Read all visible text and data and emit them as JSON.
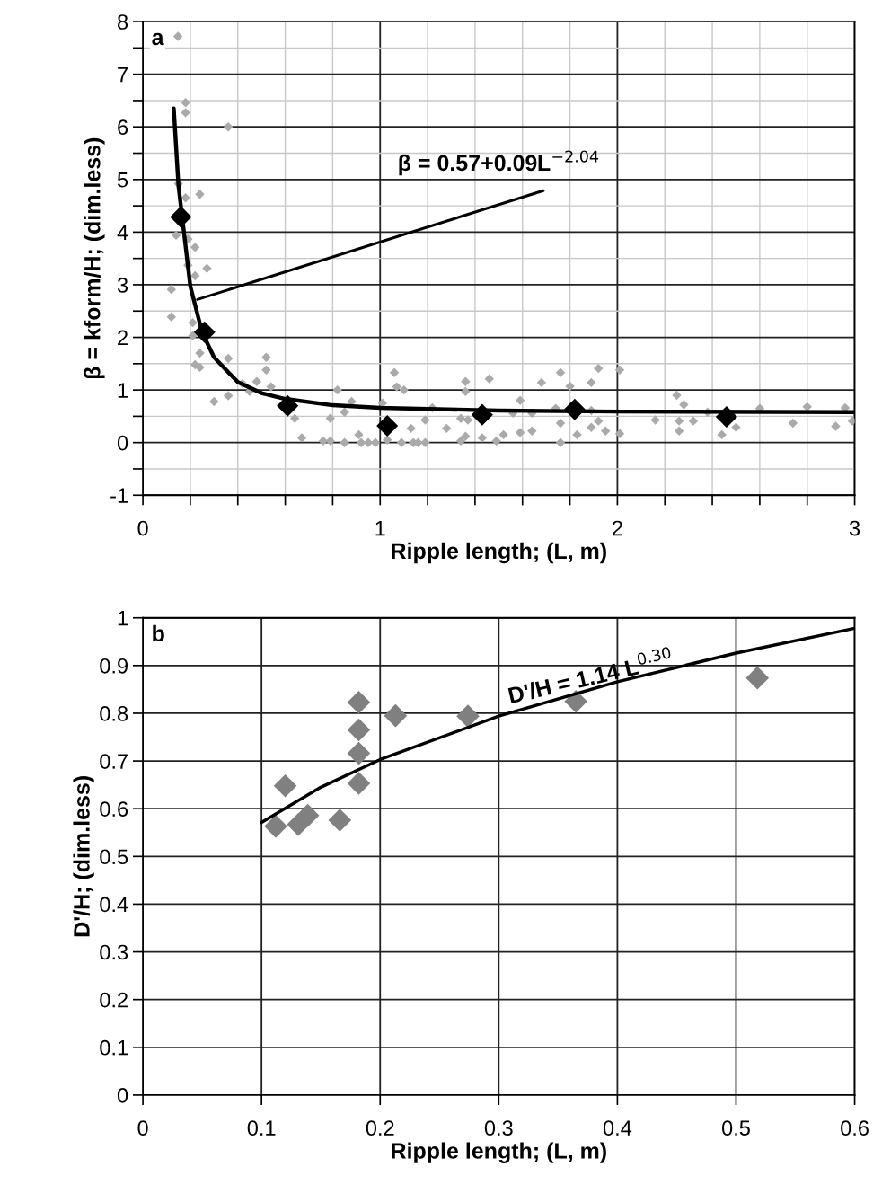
{
  "chart_data": [
    {
      "type": "scatter",
      "xlabel": "Ripple length; (L, m)",
      "ylabel": "β = kform/H; (dim.less)",
      "xlim": [
        0,
        3
      ],
      "ylim": [
        -1,
        8
      ],
      "grid": true,
      "xticks": [
        0,
        {
          "value": 0.2,
          "label": null
        },
        {
          "value": 0.4,
          "label": null
        },
        {
          "value": 0.6,
          "label": null
        },
        {
          "value": 0.8,
          "label": null
        },
        1,
        {
          "value": 1.2,
          "label": null
        },
        {
          "value": 1.4,
          "label": null
        },
        {
          "value": 1.6,
          "label": null
        },
        {
          "value": 1.8,
          "label": null
        },
        2,
        {
          "value": 2.2,
          "label": null
        },
        {
          "value": 2.4,
          "label": null
        },
        {
          "value": 2.6,
          "label": null
        },
        {
          "value": 2.8,
          "label": null
        },
        3
      ],
      "yticks": [
        -1,
        {
          "value": -0.5,
          "label": null
        },
        0,
        {
          "value": 0.5,
          "label": null
        },
        1,
        {
          "value": 1.5,
          "label": null
        },
        2,
        {
          "value": 2.5,
          "label": null
        },
        3,
        {
          "value": 3.5,
          "label": null
        },
        4,
        {
          "value": 4.5,
          "label": null
        },
        5,
        {
          "value": 5.5,
          "label": null
        },
        6,
        {
          "value": 6.5,
          "label": null
        },
        7,
        {
          "value": 7.5,
          "label": null
        },
        8
      ],
      "annotations": [
        "a",
        {
          "text": "β = 0.57+0.09L$^{−2.04}$",
          "x": 0.23,
          "y": 2.72
        }
      ],
      "series": [
        {
          "color": "#aaaaaa",
          "marker": "diamond",
          "x": [
            0.148,
            0.18,
            0.18,
            0.36,
            0.15,
            0.18,
            0.24,
            0.14,
            0.19,
            0.22,
            0.27,
            0.19,
            0.22,
            0.12,
            0.12,
            0.21,
            0.21,
            0.24,
            0.22,
            0.24,
            0.36,
            0.52,
            0.52,
            0.3,
            0.36,
            0.42,
            0.48,
            0.54,
            0.45,
            0.64,
            0.67,
            0.76,
            0.79,
            0.79,
            0.82,
            0.85,
            0.88,
            0.85,
            0.91,
            0.92,
            0.95,
            0.98,
            1.01,
            1.03,
            1.06,
            1.07,
            1.1,
            1.13,
            1.09,
            1.14,
            1.16,
            1.19,
            1.19,
            1.22,
            1.28,
            1.34,
            1.37,
            1.36,
            1.36,
            1.46,
            1.34,
            1.36,
            1.43,
            1.49,
            1.52,
            1.59,
            1.68,
            1.76,
            1.8,
            1.89,
            1.92,
            2.01,
            1.64,
            1.74,
            1.76,
            1.76,
            1.83,
            1.89,
            1.92,
            1.95,
            2.01,
            1.89,
            1.59,
            1.56,
            1.64,
            2.25,
            2.28,
            2.38,
            2.16,
            2.26,
            2.32,
            2.26,
            2.44,
            2.5,
            2.6,
            2.74,
            2.8,
            2.92,
            2.96,
            2.99
          ],
          "values": [
            7.72,
            6.46,
            6.27,
            6.0,
            4.92,
            4.65,
            4.72,
            3.94,
            3.87,
            3.71,
            3.31,
            3.37,
            3.17,
            2.91,
            2.39,
            2.28,
            2.03,
            1.7,
            1.48,
            1.43,
            1.6,
            1.62,
            1.38,
            0.78,
            0.89,
            1.12,
            1.16,
            1.06,
            0.97,
            0.46,
            0.09,
            0.03,
            0.03,
            0.46,
            1.0,
            0.58,
            0.78,
            0.0,
            0.15,
            0.0,
            0.0,
            0.0,
            0.75,
            0.05,
            1.33,
            1.06,
            1.0,
            0.27,
            0.0,
            0.0,
            0.0,
            0.0,
            0.43,
            0.66,
            0.27,
            0.46,
            0.43,
            1.16,
            0.97,
            1.21,
            0.03,
            0.12,
            0.09,
            0.03,
            0.15,
            0.8,
            1.14,
            1.33,
            1.07,
            1.14,
            1.41,
            1.38,
            0.56,
            0.65,
            0.37,
            0.0,
            0.15,
            0.29,
            0.41,
            0.22,
            0.17,
            0.61,
            0.19,
            0.56,
            0.22,
            0.9,
            0.72,
            0.58,
            0.43,
            0.41,
            0.41,
            0.22,
            0.15,
            0.29,
            0.65,
            0.37,
            0.68,
            0.31,
            0.66,
            0.41
          ]
        },
        {
          "color": "#000000",
          "marker": "diamond",
          "x": [
            0.16,
            0.26,
            0.61,
            1.03,
            1.43,
            1.82,
            2.46
          ],
          "values": [
            4.29,
            2.1,
            0.7,
            0.32,
            0.53,
            0.63,
            0.49
          ]
        },
        {
          "type": "line",
          "color": "#000000",
          "x": [
            0.13,
            0.15,
            0.2,
            0.25,
            0.3,
            0.4,
            0.5,
            0.6,
            0.8,
            1.0,
            1.5,
            2.0,
            3.0
          ],
          "values": [
            6.35,
            4.88,
            2.97,
            2.09,
            1.62,
            1.15,
            0.94,
            0.83,
            0.71,
            0.66,
            0.61,
            0.59,
            0.58
          ]
        }
      ]
    },
    {
      "type": "scatter",
      "xlabel": "Ripple length; (L, m)",
      "ylabel": "D'/H; (dim.less)",
      "xlim": [
        0,
        0.6
      ],
      "ylim": [
        0,
        1
      ],
      "grid": true,
      "xticks": [
        0,
        0.1,
        0.2,
        0.3,
        0.4,
        0.5,
        0.6
      ],
      "yticks": [
        0,
        0.1,
        0.2,
        0.3,
        0.4,
        0.5,
        0.6,
        0.7,
        0.8,
        0.9,
        1
      ],
      "annotations": [
        "b",
        {
          "text": "D'/H = 1.14 L$^{0.30}$",
          "x": 0.38,
          "y": 0.85
        }
      ],
      "series": [
        {
          "color": "#808080",
          "marker": "diamond",
          "x": [
            0.112,
            0.12,
            0.131,
            0.139,
            0.166,
            0.182,
            0.182,
            0.182,
            0.182,
            0.213,
            0.274,
            0.365,
            0.518
          ],
          "values": [
            0.563,
            0.648,
            0.567,
            0.586,
            0.576,
            0.823,
            0.765,
            0.716,
            0.653,
            0.795,
            0.794,
            0.825,
            0.874
          ]
        },
        {
          "type": "line",
          "color": "#000000",
          "x": [
            0.1,
            0.15,
            0.2,
            0.3,
            0.4,
            0.5,
            0.6
          ],
          "values": [
            0.571,
            0.645,
            0.703,
            0.794,
            0.866,
            0.926,
            0.978
          ]
        }
      ]
    }
  ]
}
